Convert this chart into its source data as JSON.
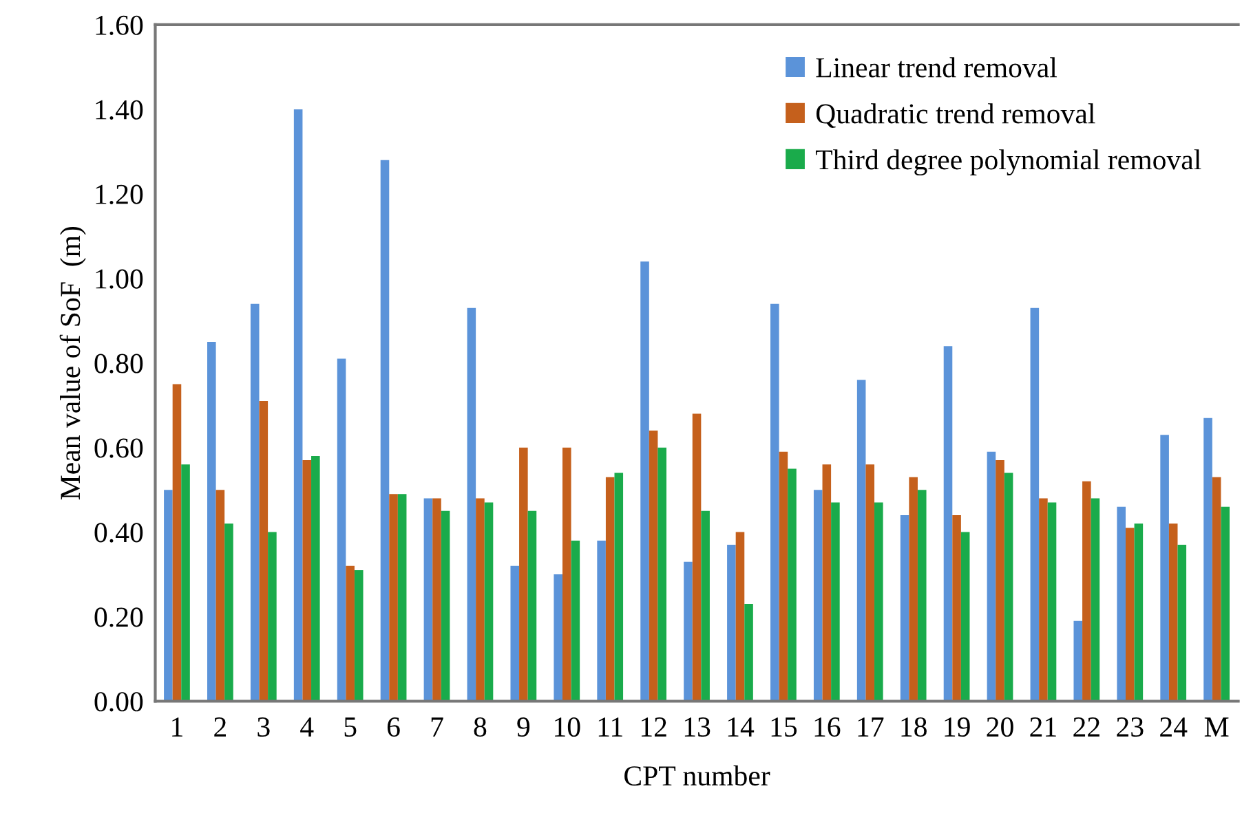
{
  "chart_data": {
    "type": "bar",
    "xlabel": "CPT number",
    "ylabel": "Mean value of SoF  (m)",
    "categories": [
      "1",
      "2",
      "3",
      "4",
      "5",
      "6",
      "7",
      "8",
      "9",
      "10",
      "11",
      "12",
      "13",
      "14",
      "15",
      "16",
      "17",
      "18",
      "19",
      "20",
      "21",
      "22",
      "23",
      "24",
      "M"
    ],
    "series": [
      {
        "name": "Linear trend removal",
        "color": "#5b93d9",
        "values": [
          0.5,
          0.85,
          0.94,
          1.4,
          0.81,
          1.28,
          0.48,
          0.93,
          0.32,
          0.3,
          0.38,
          1.04,
          0.33,
          0.37,
          0.94,
          0.5,
          0.76,
          0.44,
          0.84,
          0.59,
          0.93,
          0.19,
          0.46,
          0.63,
          0.67
        ]
      },
      {
        "name": "Quadratic trend removal",
        "color": "#c5601c",
        "values": [
          0.75,
          0.5,
          0.71,
          0.57,
          0.32,
          0.49,
          0.48,
          0.48,
          0.6,
          0.6,
          0.53,
          0.64,
          0.68,
          0.4,
          0.59,
          0.56,
          0.56,
          0.53,
          0.44,
          0.57,
          0.48,
          0.52,
          0.41,
          0.42,
          0.53
        ]
      },
      {
        "name": "Third degree polynomial removal",
        "color": "#1aab4b",
        "values": [
          0.56,
          0.42,
          0.4,
          0.58,
          0.31,
          0.49,
          0.45,
          0.47,
          0.45,
          0.38,
          0.54,
          0.6,
          0.45,
          0.23,
          0.55,
          0.47,
          0.47,
          0.5,
          0.4,
          0.54,
          0.47,
          0.48,
          0.42,
          0.37,
          0.46
        ]
      }
    ],
    "ylim": [
      0,
      1.6
    ],
    "yticks": [
      {
        "value": 0,
        "label": "0.00"
      },
      {
        "value": 0.2,
        "label": "0.20"
      },
      {
        "value": 0.4,
        "label": "0.40"
      },
      {
        "value": 0.6,
        "label": "0.60"
      },
      {
        "value": 0.8,
        "label": "0.80"
      },
      {
        "value": 1.0,
        "label": "1.00"
      },
      {
        "value": 1.2,
        "label": "1.20"
      },
      {
        "value": 1.4,
        "label": "1.40"
      },
      {
        "value": 1.6,
        "label": "1.60"
      }
    ],
    "legend": "top right",
    "grid": false
  }
}
